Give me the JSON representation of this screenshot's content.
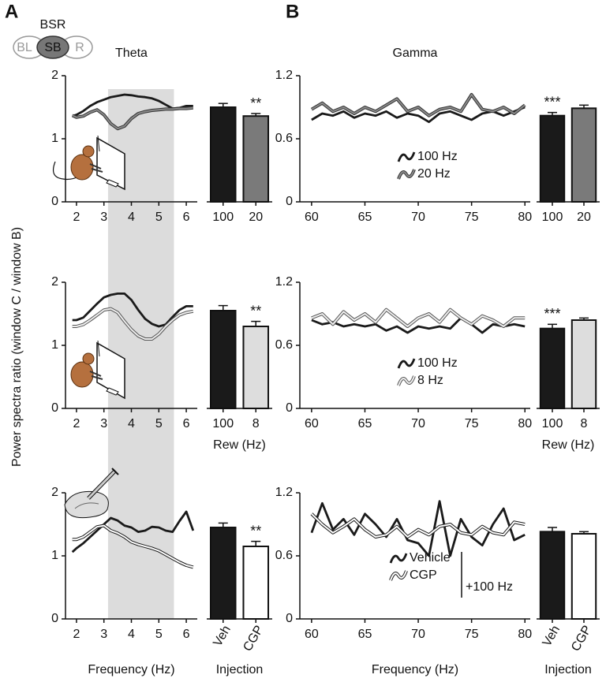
{
  "panels": {
    "A": "A",
    "B": "B"
  },
  "bsr_diagram": {
    "title": "BSR",
    "nodes": [
      "BL",
      "SB",
      "R"
    ]
  },
  "ylabel": "Power spectra ratio  (window C / window B)",
  "chart_data": [
    {
      "type": "line",
      "title": "Theta",
      "shade": [
        3.15,
        5.55
      ],
      "x": [
        1.85,
        2,
        2.25,
        2.5,
        2.75,
        3,
        3.25,
        3.5,
        3.75,
        4,
        4.25,
        4.5,
        4.75,
        5,
        5.25,
        5.5,
        5.75,
        6,
        6.25
      ],
      "series": [
        {
          "color": "#1a1a1a",
          "values": [
            1.36,
            1.38,
            1.44,
            1.52,
            1.58,
            1.62,
            1.66,
            1.68,
            1.7,
            1.69,
            1.67,
            1.66,
            1.64,
            1.6,
            1.54,
            1.48,
            1.49,
            1.52,
            1.52
          ]
        },
        {
          "color": "#333333",
          "inner_color": "#8a8a8a",
          "values": [
            1.37,
            1.34,
            1.36,
            1.42,
            1.46,
            1.38,
            1.24,
            1.16,
            1.2,
            1.32,
            1.4,
            1.43,
            1.45,
            1.46,
            1.47,
            1.47,
            1.48,
            1.48,
            1.49
          ]
        }
      ],
      "xlim": [
        1.6,
        6.4
      ],
      "ylim": [
        0,
        2
      ],
      "xticks": [
        2,
        3,
        4,
        5,
        6
      ],
      "yticks": [
        0,
        1,
        2
      ]
    },
    {
      "type": "bar",
      "categories": [
        "100",
        "20"
      ],
      "values": [
        1.5,
        1.36
      ],
      "errors": [
        0.06,
        0.04
      ],
      "colors": [
        "#1a1a1a",
        "#7a7a7a"
      ],
      "annotations": [
        null,
        "**"
      ],
      "ylim": [
        0,
        2
      ]
    },
    {
      "type": "line",
      "title": "Gamma",
      "legend": "center",
      "x": [
        60,
        61,
        62,
        63,
        64,
        65,
        66,
        67,
        68,
        69,
        70,
        71,
        72,
        73,
        74,
        75,
        76,
        77,
        78,
        79,
        80
      ],
      "series": [
        {
          "name": "100 Hz",
          "color": "#1a1a1a",
          "values": [
            0.78,
            0.84,
            0.82,
            0.86,
            0.8,
            0.84,
            0.82,
            0.86,
            0.8,
            0.84,
            0.82,
            0.76,
            0.84,
            0.86,
            0.82,
            0.78,
            0.84,
            0.86,
            0.82,
            0.86,
            0.9
          ]
        },
        {
          "name": "20 Hz",
          "color": "#333333",
          "inner_color": "#8a8a8a",
          "values": [
            0.88,
            0.94,
            0.86,
            0.9,
            0.84,
            0.9,
            0.86,
            0.92,
            0.98,
            0.86,
            0.9,
            0.82,
            0.88,
            0.9,
            0.86,
            1.02,
            0.88,
            0.86,
            0.9,
            0.84,
            0.92
          ]
        }
      ],
      "xlim": [
        58.9,
        80.5
      ],
      "ylim": [
        0,
        1.2
      ],
      "xticks": [
        60,
        65,
        70,
        75,
        80
      ],
      "yticks": [
        0,
        0.6,
        1.2
      ]
    },
    {
      "type": "bar",
      "categories": [
        "100",
        "20"
      ],
      "values": [
        0.82,
        0.89
      ],
      "errors": [
        0.03,
        0.03
      ],
      "colors": [
        "#1a1a1a",
        "#7a7a7a"
      ],
      "annotations": [
        "***",
        null
      ],
      "ylim": [
        0,
        1.2
      ]
    },
    {
      "type": "line",
      "x": [
        1.85,
        2,
        2.25,
        2.5,
        2.75,
        3,
        3.25,
        3.5,
        3.75,
        4,
        4.25,
        4.5,
        4.75,
        5,
        5.25,
        5.5,
        5.75,
        6,
        6.25
      ],
      "series": [
        {
          "color": "#1a1a1a",
          "values": [
            1.4,
            1.4,
            1.44,
            1.55,
            1.66,
            1.76,
            1.8,
            1.82,
            1.82,
            1.72,
            1.56,
            1.42,
            1.34,
            1.3,
            1.33,
            1.45,
            1.56,
            1.62,
            1.62
          ]
        },
        {
          "color": "#555555",
          "inner_color": "#eeeeee",
          "values": [
            1.3,
            1.3,
            1.33,
            1.4,
            1.48,
            1.56,
            1.58,
            1.52,
            1.38,
            1.25,
            1.15,
            1.1,
            1.1,
            1.18,
            1.3,
            1.4,
            1.48,
            1.52,
            1.54
          ]
        }
      ],
      "xlim": [
        1.6,
        6.4
      ],
      "ylim": [
        0,
        2
      ],
      "xticks": [
        2,
        3,
        4,
        5,
        6
      ],
      "yticks": [
        0,
        1,
        2
      ]
    },
    {
      "type": "bar",
      "xlabel": "Rew (Hz)",
      "categories": [
        "100",
        "8"
      ],
      "values": [
        1.55,
        1.3
      ],
      "errors": [
        0.08,
        0.08
      ],
      "colors": [
        "#1a1a1a",
        "#dddddd"
      ],
      "annotations": [
        null,
        "**"
      ],
      "ylim": [
        0,
        2
      ]
    },
    {
      "type": "line",
      "legend": "center",
      "x": [
        60,
        61,
        62,
        63,
        64,
        65,
        66,
        67,
        68,
        69,
        70,
        71,
        72,
        73,
        74,
        75,
        76,
        77,
        78,
        79,
        80
      ],
      "series": [
        {
          "name": "100 Hz",
          "color": "#1a1a1a",
          "values": [
            0.84,
            0.8,
            0.82,
            0.78,
            0.8,
            0.78,
            0.8,
            0.74,
            0.78,
            0.72,
            0.78,
            0.76,
            0.78,
            0.76,
            0.86,
            0.8,
            0.72,
            0.8,
            0.78,
            0.8,
            0.78
          ]
        },
        {
          "name": "8 Hz",
          "color": "#555555",
          "inner_color": "#eeeeee",
          "values": [
            0.86,
            0.9,
            0.8,
            0.92,
            0.84,
            0.9,
            0.82,
            0.94,
            0.86,
            0.78,
            0.86,
            0.9,
            0.82,
            0.94,
            0.86,
            0.8,
            0.88,
            0.84,
            0.78,
            0.86,
            0.86
          ]
        }
      ],
      "xlim": [
        58.9,
        80.5
      ],
      "ylim": [
        0,
        1.2
      ],
      "xticks": [
        60,
        65,
        70,
        75,
        80
      ],
      "yticks": [
        0,
        0.6,
        1.2
      ]
    },
    {
      "type": "bar",
      "xlabel": "Rew (Hz)",
      "categories": [
        "100",
        "8"
      ],
      "values": [
        0.76,
        0.84
      ],
      "errors": [
        0.04,
        0.02
      ],
      "colors": [
        "#1a1a1a",
        "#dddddd"
      ],
      "annotations": [
        "***",
        null
      ],
      "ylim": [
        0,
        1.2
      ]
    },
    {
      "type": "line",
      "xlabel": "Frequency (Hz)",
      "x": [
        1.85,
        2,
        2.25,
        2.5,
        2.75,
        3,
        3.25,
        3.5,
        3.75,
        4,
        4.25,
        4.5,
        4.75,
        5,
        5.25,
        5.5,
        5.75,
        6,
        6.25
      ],
      "series": [
        {
          "color": "#1a1a1a",
          "values": [
            1.06,
            1.12,
            1.2,
            1.3,
            1.4,
            1.5,
            1.6,
            1.56,
            1.48,
            1.45,
            1.38,
            1.4,
            1.46,
            1.45,
            1.4,
            1.38,
            1.55,
            1.7,
            1.4
          ]
        },
        {
          "color": "#1a1a1a",
          "inner_color": "#ffffff",
          "values": [
            1.26,
            1.26,
            1.3,
            1.38,
            1.46,
            1.48,
            1.4,
            1.36,
            1.3,
            1.22,
            1.18,
            1.15,
            1.12,
            1.08,
            1.02,
            0.96,
            0.9,
            0.85,
            0.82
          ]
        }
      ],
      "xlim": [
        1.6,
        6.4
      ],
      "ylim": [
        0,
        2
      ],
      "xticks": [
        2,
        3,
        4,
        5,
        6
      ],
      "yticks": [
        0,
        1,
        2
      ]
    },
    {
      "type": "bar",
      "xlabel": "Injection",
      "label_rotation": -60,
      "categories": [
        "Veh",
        "CGP"
      ],
      "values": [
        1.45,
        1.15
      ],
      "errors": [
        0.07,
        0.08
      ],
      "colors": [
        "#1a1a1a",
        "#ffffff"
      ],
      "annotations": [
        null,
        "**"
      ],
      "ylim": [
        0,
        2
      ]
    },
    {
      "type": "line",
      "xlabel": "Frequency (Hz)",
      "legend": "bottom",
      "legend_note": "+100 Hz",
      "x": [
        60,
        61,
        62,
        63,
        64,
        65,
        66,
        67,
        68,
        69,
        70,
        71,
        72,
        73,
        74,
        75,
        76,
        77,
        78,
        79,
        80
      ],
      "series": [
        {
          "name": "Vehicle",
          "color": "#1a1a1a",
          "values": [
            0.82,
            1.1,
            0.85,
            0.95,
            0.8,
            1.0,
            0.9,
            0.78,
            0.95,
            0.75,
            0.72,
            0.6,
            1.12,
            0.6,
            0.95,
            0.78,
            0.7,
            0.9,
            1.05,
            0.75,
            0.8
          ]
        },
        {
          "name": "CGP",
          "color": "#1a1a1a",
          "inner_color": "#ffffff",
          "values": [
            1.0,
            0.9,
            0.82,
            0.88,
            0.95,
            0.85,
            0.78,
            0.8,
            0.88,
            0.78,
            0.85,
            0.8,
            0.88,
            0.9,
            0.82,
            0.8,
            0.88,
            0.82,
            0.8,
            0.92,
            0.9
          ]
        }
      ],
      "xlim": [
        58.9,
        80.5
      ],
      "ylim": [
        0,
        1.2
      ],
      "xticks": [
        60,
        65,
        70,
        75,
        80
      ],
      "yticks": [
        0,
        0.6,
        1.2
      ]
    },
    {
      "type": "bar",
      "xlabel": "Injection",
      "label_rotation": -60,
      "categories": [
        "Veh",
        "CGP"
      ],
      "values": [
        0.83,
        0.81
      ],
      "errors": [
        0.04,
        0.02
      ],
      "colors": [
        "#1a1a1a",
        "#ffffff"
      ],
      "ylim": [
        0,
        1.2
      ]
    }
  ]
}
